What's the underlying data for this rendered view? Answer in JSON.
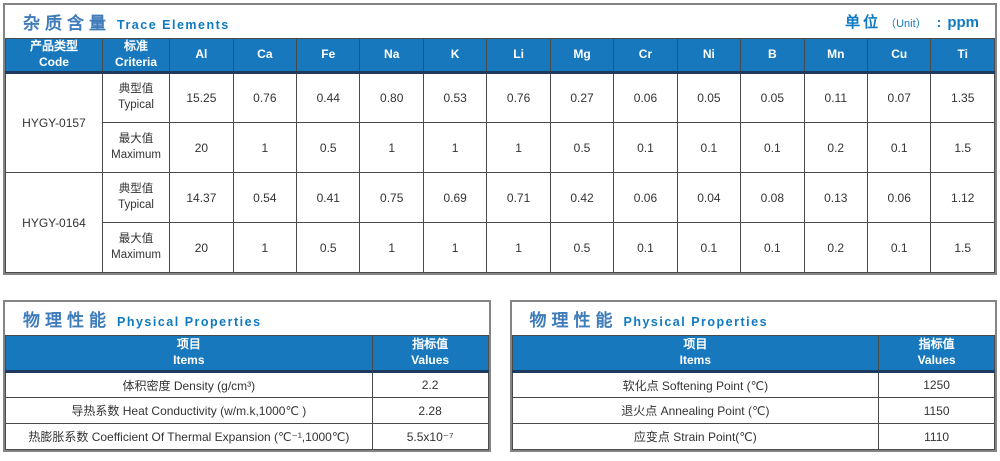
{
  "colors": {
    "header_blue": "#1878be",
    "header_underline_navy": "#1e3a5f",
    "section_title_blue": "#3f7cba",
    "accent_blue": "#0f7ac0",
    "grid_border": "#4a4a4a",
    "outer_border": "#848484"
  },
  "trace_table": {
    "title_zh": "杂质含量",
    "title_en": "Trace Elements",
    "unit_zh": "单位",
    "unit_en": "（Unit）",
    "unit_colon": ":",
    "unit_value": "ppm",
    "col_product_zh": "产品类型",
    "col_product_en": "Code",
    "col_criteria_zh": "标准",
    "col_criteria_en": "Criteria",
    "criteria_typical_zh": "典型值",
    "criteria_typical_en": "Typical",
    "criteria_max_zh": "最大值",
    "criteria_max_en": "Maximum",
    "elements": [
      "Al",
      "Ca",
      "Fe",
      "Na",
      "K",
      "Li",
      "Mg",
      "Cr",
      "Ni",
      "B",
      "Mn",
      "Cu",
      "Ti"
    ],
    "products": [
      {
        "code": "HYGY-0157",
        "typical": [
          "15.25",
          "0.76",
          "0.44",
          "0.80",
          "0.53",
          "0.76",
          "0.27",
          "0.06",
          "0.05",
          "0.05",
          "0.11",
          "0.07",
          "1.35"
        ],
        "maximum": [
          "20",
          "1",
          "0.5",
          "1",
          "1",
          "1",
          "0.5",
          "0.1",
          "0.1",
          "0.1",
          "0.2",
          "0.1",
          "1.5"
        ]
      },
      {
        "code": "HYGY-0164",
        "typical": [
          "14.37",
          "0.54",
          "0.41",
          "0.75",
          "0.69",
          "0.71",
          "0.42",
          "0.06",
          "0.04",
          "0.08",
          "0.13",
          "0.06",
          "1.12"
        ],
        "maximum": [
          "20",
          "1",
          "0.5",
          "1",
          "1",
          "1",
          "0.5",
          "0.1",
          "0.1",
          "0.1",
          "0.2",
          "0.1",
          "1.5"
        ]
      }
    ]
  },
  "physical_left": {
    "title_zh": "物理性能",
    "title_en": "Physical Properties",
    "col_items_zh": "项目",
    "col_items_en": "Items",
    "col_values_zh": "指标值",
    "col_values_en": "Values",
    "rows": [
      {
        "item": "体积密度 Density (g/cm³)",
        "value": "2.2"
      },
      {
        "item": "导热系数 Heat Conductivity (w/m.k,1000℃ )",
        "value": "2.28"
      },
      {
        "item": "热膨胀系数 Coefficient Of Thermal Expansion (℃⁻¹,1000℃)",
        "value": "5.5x10⁻⁷"
      }
    ]
  },
  "physical_right": {
    "title_zh": "物理性能",
    "title_en": "Physical Properties",
    "col_items_zh": "项目",
    "col_items_en": "Items",
    "col_values_zh": "指标值",
    "col_values_en": "Values",
    "rows": [
      {
        "item": "软化点 Softening Point (℃)",
        "value": "1250"
      },
      {
        "item": "退火点 Annealing Point (℃)",
        "value": "1150"
      },
      {
        "item": "应变点 Strain Point(℃)",
        "value": "1110"
      }
    ]
  }
}
